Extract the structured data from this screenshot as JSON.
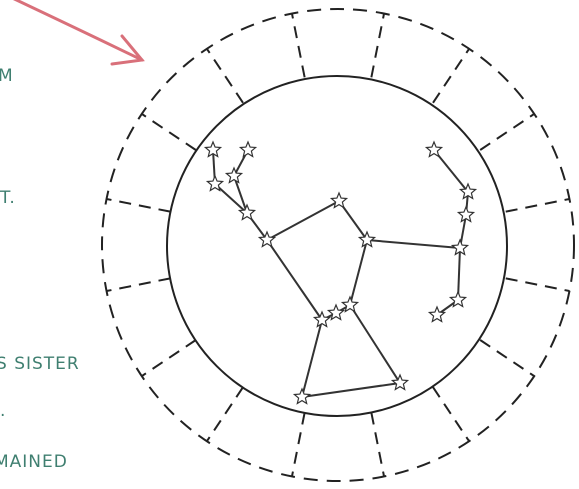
{
  "text_lines": [
    "M",
    "T.",
    "S SISTER",
    ".",
    "MAINED"
  ]
}
